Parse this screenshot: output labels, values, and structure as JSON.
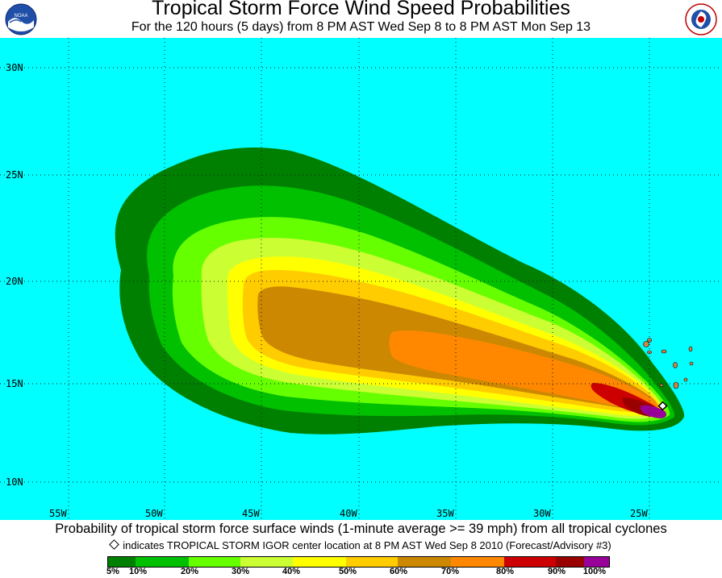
{
  "header": {
    "title": "Tropical Storm Force Wind Speed Probabilities",
    "subtitle": "For the 120 hours (5 days) from 8 PM AST Wed Sep 8 to 8 PM AST Mon Sep 13",
    "logo_left_text": "NOAA",
    "logo_right_text": "NATIONAL WEATHER SERVICE"
  },
  "map": {
    "latitude_labels": [
      "30N",
      "25N",
      "20N",
      "15N",
      "10N"
    ],
    "longitude_labels": [
      "55W",
      "50W",
      "45W",
      "40W",
      "35W",
      "30W",
      "25W"
    ],
    "ocean_color": "#00ffff",
    "storm_center": {
      "lat": 13.7,
      "lon": "24.3W"
    }
  },
  "footer": {
    "description": "Probability of tropical storm force surface winds (1-minute average >= 39 mph) from all tropical cyclones",
    "marker_note": "indicates TROPICAL STORM IGOR center location at 8 PM AST Wed Sep 8 2010 (Forecast/Advisory #3)"
  },
  "legend": {
    "colors": [
      "#008000",
      "#00c000",
      "#66ff00",
      "#ccff33",
      "#ffff00",
      "#ffcc00",
      "#cc8800",
      "#ff8800",
      "#cc0000",
      "#990000",
      "#990099"
    ],
    "labels": [
      "5%",
      "10%",
      "20%",
      "30%",
      "40%",
      "50%",
      "60%",
      "70%",
      "80%",
      "90%",
      "100%"
    ]
  }
}
